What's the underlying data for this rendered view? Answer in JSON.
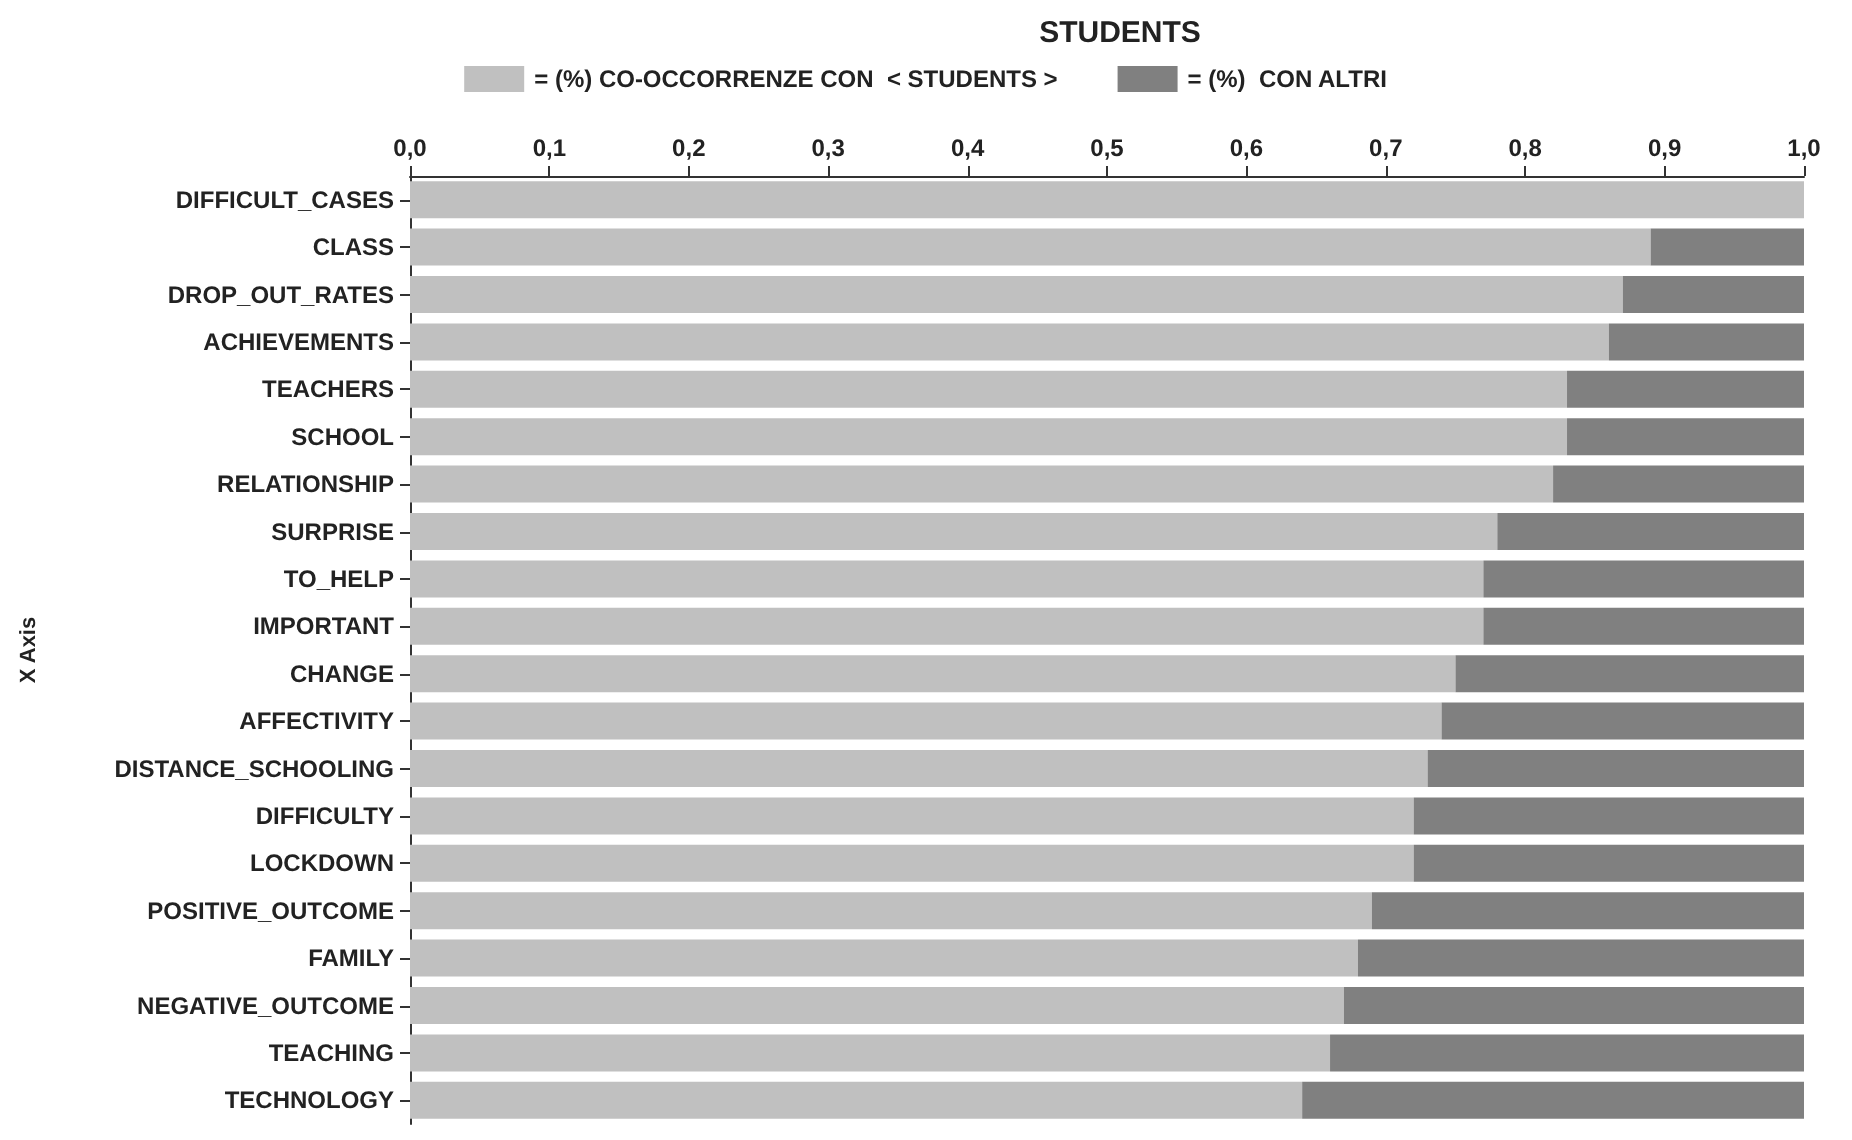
{
  "chart_data": {
    "type": "bar",
    "orientation": "horizontal",
    "stacked": true,
    "title": "STUDENTS",
    "ylabel": "X Axis",
    "legend": "top",
    "grid": false,
    "categories": [
      "DIFFICULT_CASES",
      "CLASS",
      "DROP_OUT_RATES",
      "ACHIEVEMENTS",
      "TEACHERS",
      "SCHOOL",
      "RELATIONSHIP",
      "SURPRISE",
      "TO_HELP",
      "IMPORTANT",
      "CHANGE",
      "AFFECTIVITY",
      "DISTANCE_SCHOOLING",
      "DIFFICULTY",
      "LOCKDOWN",
      "POSITIVE_OUTCOME",
      "FAMILY",
      "NEGATIVE_OUTCOME",
      "TEACHING",
      "TECHNOLOGY"
    ],
    "series": [
      {
        "name": "= (%) CO-OCCORRENZE CON  < STUDENTS >",
        "color": "#c0c0c0",
        "values": [
          1.0,
          0.89,
          0.87,
          0.86,
          0.83,
          0.83,
          0.82,
          0.78,
          0.77,
          0.77,
          0.75,
          0.74,
          0.73,
          0.72,
          0.72,
          0.69,
          0.68,
          0.67,
          0.66,
          0.64
        ]
      },
      {
        "name": "= (%)  CON ALTRI",
        "color": "#808080",
        "values": [
          0,
          0.11,
          0.13,
          0.14,
          0.17,
          0.17,
          0.18,
          0.22,
          0.23,
          0.23,
          0.25,
          0.26,
          0.27,
          0.28,
          0.28,
          0.31,
          0.32,
          0.33,
          0.34,
          0.36
        ]
      }
    ],
    "xlim": [
      0,
      1
    ],
    "xticks": [
      {
        "value": 0,
        "label": "0,0"
      },
      {
        "value": 0.1,
        "label": "0,1"
      },
      {
        "value": 0.2,
        "label": "0,2"
      },
      {
        "value": 0.3,
        "label": "0,3"
      },
      {
        "value": 0.4,
        "label": "0,4"
      },
      {
        "value": 0.5,
        "label": "0,5"
      },
      {
        "value": 0.6,
        "label": "0,6"
      },
      {
        "value": 0.7,
        "label": "0,7"
      },
      {
        "value": 0.8,
        "label": "0,8"
      },
      {
        "value": 0.9,
        "label": "0,9"
      },
      {
        "value": 1,
        "label": "1,0"
      }
    ]
  }
}
